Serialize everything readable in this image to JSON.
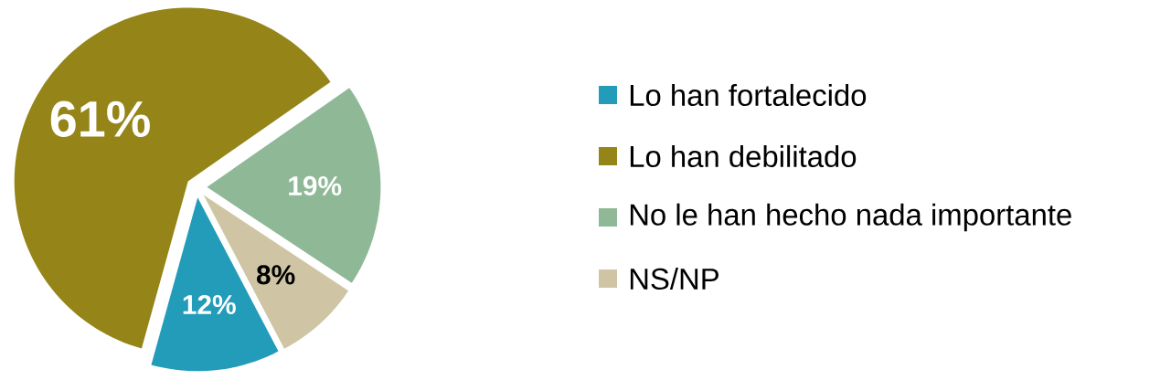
{
  "chart_data": {
    "type": "pie",
    "categories": [
      "Lo han fortalecido",
      "Lo han debilitado",
      "No le han hecho nada importante",
      "NS/NP"
    ],
    "values": [
      12,
      61,
      19,
      8
    ],
    "colors": [
      "#239cb9",
      "#958519",
      "#8fb897",
      "#cfc5a5"
    ],
    "value_labels": [
      "12%",
      "61%",
      "19%",
      "8%"
    ],
    "legend": "right"
  }
}
